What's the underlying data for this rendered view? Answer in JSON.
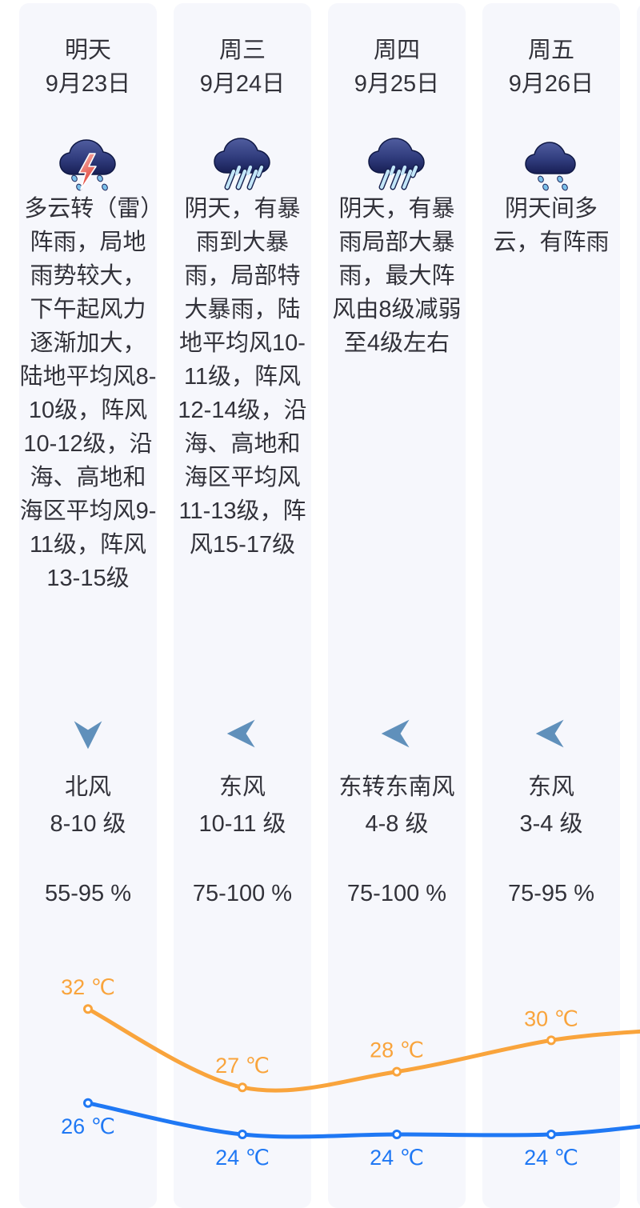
{
  "columns": [
    {
      "day": "明天",
      "date": "9月23日",
      "condition_icon": "thunder-shower-icon",
      "description": "多云转（雷）阵雨，局地雨势较大，下午起风力逐渐加大，陆地平均风8-10级，阵风10-12级，沿海、高地和海区平均风9-11级，阵风13-15级",
      "wind_direction": "北风",
      "wind_level": "8-10 级",
      "wind_arrow": "down",
      "humidity": "55-95 %"
    },
    {
      "day": "周三",
      "date": "9月24日",
      "condition_icon": "heavy-rain-icon",
      "description": "阴天，有暴雨到大暴雨，局部特大暴雨，陆地平均风10-11级，阵风12-14级，沿海、高地和海区平均风11-13级，阵风15-17级",
      "wind_direction": "东风",
      "wind_level": "10-11 级",
      "wind_arrow": "left",
      "humidity": "75-100 %"
    },
    {
      "day": "周四",
      "date": "9月25日",
      "condition_icon": "heavy-rain-icon",
      "description": "阴天，有暴雨局部大暴雨，最大阵风由8级减弱至4级左右",
      "wind_direction": "东转东南风",
      "wind_level": "4-8 级",
      "wind_arrow": "left",
      "humidity": "75-100 %"
    },
    {
      "day": "周五",
      "date": "9月26日",
      "condition_icon": "drizzle-icon",
      "description": "阴天间多云，有阵雨",
      "wind_direction": "东风",
      "wind_level": "3-4 级",
      "wind_arrow": "left",
      "humidity": "75-95 %"
    }
  ],
  "chart_data": {
    "type": "line",
    "categories": [
      "9月23日",
      "9月24日",
      "9月25日",
      "9月26日"
    ],
    "series": [
      {
        "name": "high-temperature",
        "values": [
          32,
          27,
          28,
          30
        ],
        "color": "#f9a43c",
        "label_position": "above"
      },
      {
        "name": "low-temperature",
        "values": [
          26,
          24,
          24,
          24
        ],
        "color": "#1f78f4",
        "label_position": "below"
      }
    ],
    "unit": "℃",
    "label_suffix": " ℃",
    "grid": false,
    "legend": "none",
    "ylim": [
      23,
      33
    ]
  },
  "colors": {
    "column_bg": "#f6f7fc",
    "text": "#32323a",
    "wind_arrow": "#6090bb",
    "high_line": "#f9a43c",
    "low_line": "#1f78f4"
  }
}
